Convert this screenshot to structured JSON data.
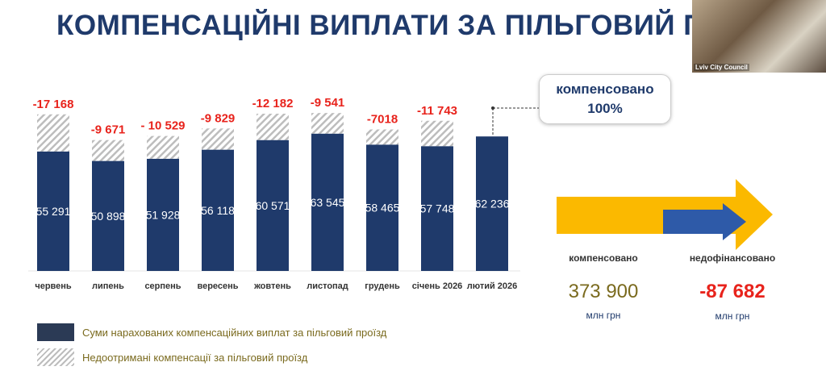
{
  "title": "КОМПЕНСАЦІЙНІ ВИПЛАТИ ЗА ПІЛЬГОВИЙ ПР",
  "video_overlay": {
    "caption": "Lviv City Council"
  },
  "callout": {
    "line1": "компенсовано",
    "line2": "100%"
  },
  "summary": {
    "compensated_label": "компенсовано",
    "compensated_value": "373 900",
    "compensated_unit": "млн грн",
    "underfunded_label": "недофінансовано",
    "underfunded_value": "-87 682",
    "underfunded_unit": "млн грн"
  },
  "colors": {
    "paid": "#1f3a6b",
    "unpaid_hatch": "#bdbdbd",
    "negative": "#e8231c",
    "arrow_yellow": "#fbb900",
    "arrow_blue": "#2e5aa8"
  },
  "chart_data": {
    "type": "bar",
    "stacked": true,
    "categories": [
      "червень",
      "липень",
      "серпень",
      "вересень",
      "жовтень",
      "листопад",
      "грудень",
      "січень 2026",
      "лютий 2026"
    ],
    "series": [
      {
        "name": "Суми нарахованих компенсаційних виплат за пільговий проїзд",
        "values": [
          55291,
          50898,
          51928,
          56118,
          60571,
          63545,
          58465,
          57748,
          62236
        ],
        "labels": [
          "55 291",
          "50 898",
          "51 928",
          "56 118",
          "60 571",
          "63 545",
          "58 465",
          "57 748",
          "62 236"
        ]
      },
      {
        "name": "Недоотримані компенсації за пільговий проїзд",
        "values": [
          17168,
          9671,
          10529,
          9829,
          12182,
          9541,
          7018,
          11743,
          0
        ],
        "labels": [
          "-17 168",
          "-9 671",
          "- 10 529",
          "-9 829",
          "-12 182",
          "-9 541",
          "-7018",
          "-11 743",
          ""
        ]
      }
    ],
    "ylim": [
      0,
      80000
    ],
    "legend": "bottom-left"
  }
}
